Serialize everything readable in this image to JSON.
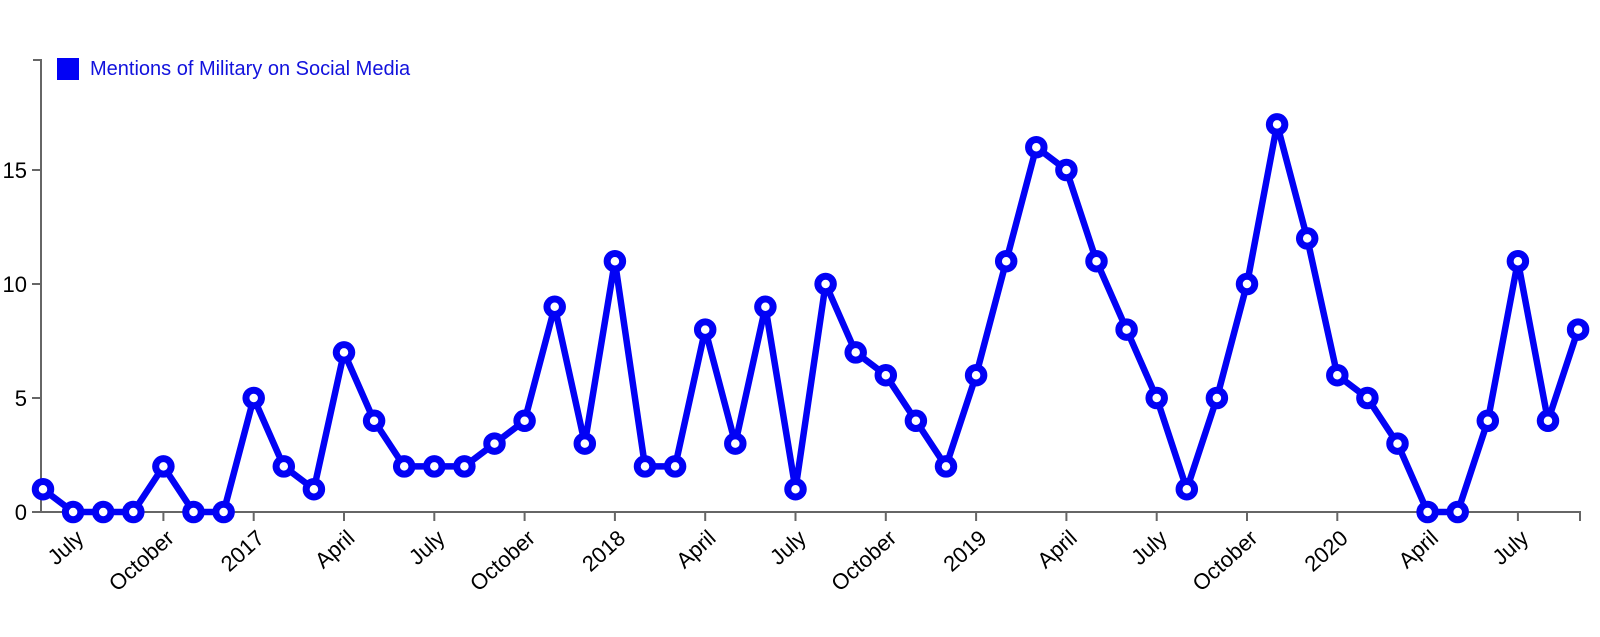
{
  "page": {
    "background_color": "#ffffff"
  },
  "legend": {
    "label": "Mentions of Military on Social Media",
    "swatch_color": "#0202f5",
    "text_color": "#1212dd",
    "position": "top-left"
  },
  "chart_data": {
    "type": "line",
    "title": "",
    "xlabel": "",
    "ylabel": "",
    "legend_label": "Mentions of Military on Social Media",
    "series_color": "#0202f5",
    "marker": "circle-open",
    "marker_fill": "#ffffff",
    "axis_color": "#666666",
    "tick_label_color": "#000000",
    "grid": false,
    "x_start": "2016-06",
    "x_interval": "monthly",
    "n_points": 52,
    "values": [
      1,
      0,
      0,
      0,
      2,
      0,
      0,
      5,
      2,
      1,
      7,
      4,
      2,
      2,
      2,
      3,
      4,
      9,
      3,
      11,
      2,
      2,
      8,
      3,
      9,
      1,
      10,
      7,
      6,
      4,
      2,
      6,
      11,
      16,
      15,
      11,
      8,
      5,
      1,
      5,
      10,
      17,
      12,
      6,
      5,
      3,
      0,
      0,
      4,
      11,
      4,
      8
    ],
    "x_tick_labels": [
      "July",
      "October",
      "2017",
      "April",
      "July",
      "October",
      "2018",
      "April",
      "July",
      "October",
      "2019",
      "April",
      "July",
      "October",
      "2020",
      "April",
      "July"
    ],
    "x_tick_first_point_index": 1,
    "x_tick_point_step": 3,
    "x_tick_label_rotation_deg": -42,
    "y_ticks": [
      0,
      5,
      10,
      15
    ],
    "ylim": [
      0,
      19.8
    ]
  }
}
